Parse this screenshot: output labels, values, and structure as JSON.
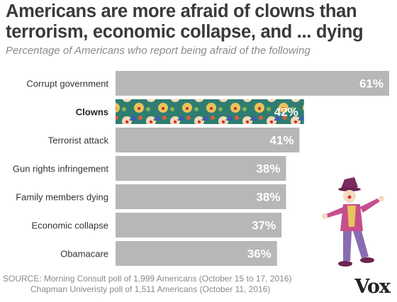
{
  "header": {
    "title": "Americans are more afraid of clowns than terrorism, economic collapse, and ... dying",
    "subtitle": "Percentage of Americans who report being afraid of the following"
  },
  "chart_data": {
    "type": "bar",
    "orientation": "horizontal",
    "title": "Americans are more afraid of clowns than terrorism, economic collapse, and ... dying",
    "subtitle": "Percentage of Americans who report being afraid of the following",
    "categories": [
      "Corrupt government",
      "Clowns",
      "Terrorist attack",
      "Gun rights infringement",
      "Family members dying",
      "Economic collapse",
      "Obamacare"
    ],
    "values": [
      61,
      42,
      41,
      38,
      38,
      37,
      36
    ],
    "value_labels": [
      "61%",
      "42%",
      "41%",
      "38%",
      "38%",
      "37%",
      "36%"
    ],
    "highlight_category": "Clowns",
    "xlim": [
      0,
      61
    ],
    "grid": false,
    "legend": "none",
    "colors": {
      "bar": "#b7b7b7",
      "highlight_a": "#2f7d72",
      "highlight_b": "#e8c65a",
      "label": "#333333"
    }
  },
  "footer": {
    "source_line1": "SOURCE: Morning Consult poll of 1,999 Americans (October 15 to 17, 2016)",
    "source_line2": "Chapman Univeristy poll of 1,511 Americans (October 11, 2016)",
    "logo": "Vox"
  },
  "decor": {
    "illustration": "clown-figure"
  }
}
